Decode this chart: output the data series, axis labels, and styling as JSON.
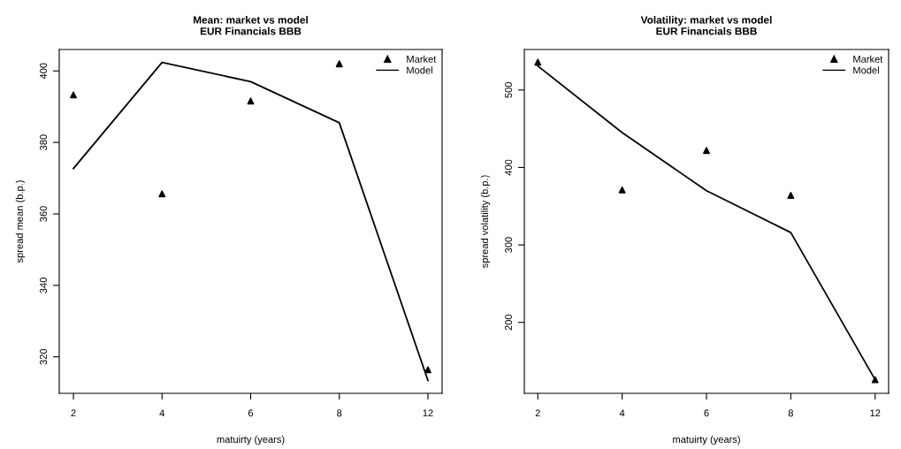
{
  "chart_data": [
    {
      "type": "line",
      "title": "Mean: market vs model\nEUR Financials BBB",
      "xlabel": "matuirty (years)",
      "ylabel": "spread mean (b.p.)",
      "categories": [
        "2",
        "4",
        "6",
        "8",
        "12"
      ],
      "ylim": [
        309.8,
        406.0
      ],
      "yticks": [
        320,
        340,
        360,
        380,
        400
      ],
      "legend": "top right",
      "grid": false,
      "series": [
        {
          "name": "Market",
          "type": "scatter",
          "marker": "triangle",
          "color": "#000000",
          "values": [
            393.3,
            365.6,
            391.6,
            402.0,
            316.4
          ]
        },
        {
          "name": "Model",
          "line_style": "solid",
          "color": "#000000",
          "values": [
            372.7,
            402.4,
            397.0,
            385.5,
            313.4
          ]
        }
      ]
    },
    {
      "type": "line",
      "title": "Volatility: market vs model\nEUR Financials BBB",
      "xlabel": "matuirty (years)",
      "ylabel": "spread volatility (b.p.)",
      "categories": [
        "2",
        "4",
        "6",
        "8",
        "12"
      ],
      "ylim": [
        108.4,
        552.3
      ],
      "yticks": [
        200,
        300,
        400,
        500
      ],
      "legend": "top right",
      "grid": false,
      "series": [
        {
          "name": "Market",
          "type": "scatter",
          "marker": "triangle",
          "color": "#000000",
          "values": [
            536,
            371,
            422,
            364,
            126
          ]
        },
        {
          "name": "Model",
          "line_style": "solid",
          "color": "#000000",
          "values": [
            531,
            445,
            370,
            316,
            126
          ]
        }
      ]
    }
  ]
}
